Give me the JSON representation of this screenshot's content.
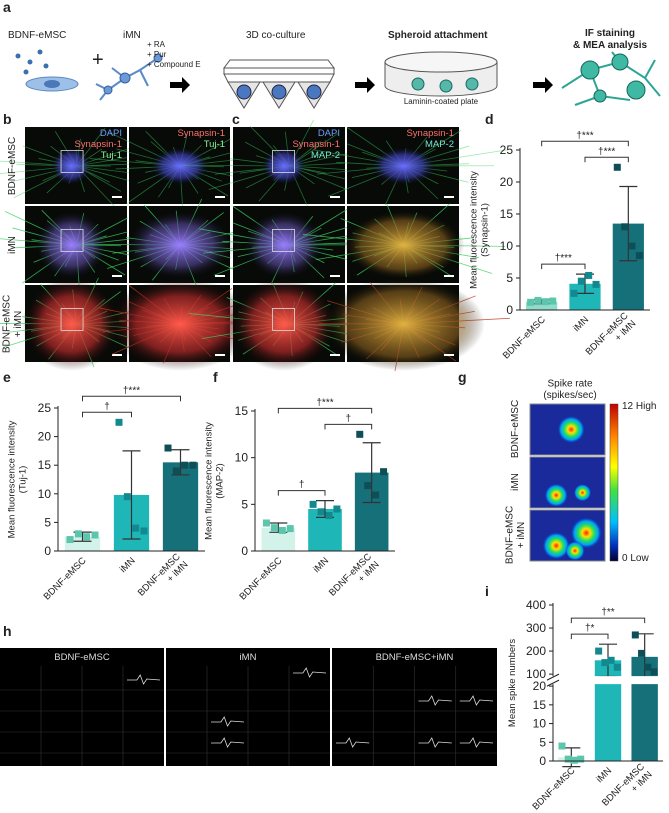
{
  "figure": {
    "panel_labels": [
      "a",
      "b",
      "c",
      "d",
      "e",
      "f",
      "g",
      "h",
      "i"
    ],
    "a": {
      "cell_labels": [
        "BDNF-eMSC",
        "iMN"
      ],
      "plus": "+",
      "treatments": [
        "+ RA",
        "+ Pur",
        "+ Compound E"
      ],
      "steps": [
        "3D co-culture",
        "Spheroid attachment"
      ],
      "plate_label": "Laminin-coated plate",
      "analysis": [
        "IF staining",
        "& MEA analysis"
      ]
    },
    "b": {
      "row_labels": [
        "BDNF-eMSC",
        "iMN",
        "BDNF-eMSC\n+ iMN"
      ],
      "stains": [
        [
          "DAPI",
          "Synapsin-1",
          "Tuj-1"
        ],
        [
          "Synapsin-1",
          "Tuj-1"
        ],
        [
          "DAPI",
          "Synapsin-1",
          "MAP-2"
        ],
        [
          "Synapsin-1",
          "MAP-2"
        ]
      ],
      "stain_colors": {
        "DAPI": "#6f9dff",
        "Synapsin-1": "#ff6f6f",
        "Tuj-1": "#8cf29a",
        "MAP-2": "#74e6cf"
      }
    },
    "g": {
      "title": "Spike rate\n(spikes/sec)",
      "row_labels": [
        "BDNF-eMSC",
        "iMN",
        "BDNF-eMSC\n+ iMN"
      ],
      "scale_high": "12 High",
      "scale_low": "0 Low"
    },
    "h": {
      "titles": [
        "BDNF-eMSC",
        "iMN",
        "BDNF-eMSC+iMN"
      ]
    }
  },
  "chart_data": [
    {
      "type": "bar",
      "ylabel": "Mean fluorescence intensity\n(Synapsin-1)",
      "categories": [
        "BDNF-eMSC",
        "iMN",
        "BDNF-eMSC\n+ iMN"
      ],
      "values": [
        1.3,
        4.1,
        13.5
      ],
      "errors": [
        0.3,
        1.5,
        5.8
      ],
      "points": [
        [
          1.2,
          1.5,
          1.3,
          1.4
        ],
        [
          2.6,
          4.5,
          5.4,
          4.0
        ],
        [
          22.3,
          13,
          10,
          8.5
        ]
      ],
      "colors": [
        "#8fdcc8",
        "#1fb6b8",
        "#167079"
      ],
      "point_colors": [
        "#5cc6ad",
        "#12898f",
        "#0e4f57"
      ],
      "ylim": [
        0,
        25
      ],
      "yticks": [
        0,
        5,
        10,
        15,
        20,
        25
      ],
      "annotations": [
        {
          "text": "†***",
          "from": 0,
          "to": 1
        },
        {
          "text": "†***",
          "from": 1,
          "to": 2
        },
        {
          "text": "†***",
          "from": 0,
          "to": 2
        }
      ]
    },
    {
      "type": "bar",
      "ylabel": "Mean fluorescence intensity\n(Tuj-1)",
      "categories": [
        "BDNF-eMSC",
        "iMN",
        "BDNF-eMSC\n+ iMN"
      ],
      "values": [
        2.5,
        9.8,
        15.5
      ],
      "errors": [
        0.8,
        7.7,
        2.2
      ],
      "points": [
        [
          2,
          3,
          2.5,
          2.8
        ],
        [
          22.5,
          9.5,
          4,
          3.5
        ],
        [
          18,
          14,
          15,
          15
        ]
      ],
      "colors": [
        "#d3f3ea",
        "#1fb6b8",
        "#167079"
      ],
      "point_colors": [
        "#5cc6ad",
        "#12898f",
        "#0e4f57"
      ],
      "ylim": [
        0,
        25
      ],
      "yticks": [
        0,
        5,
        10,
        15,
        20,
        25
      ],
      "annotations": [
        {
          "text": "†",
          "from": 0,
          "to": 1
        },
        {
          "text": "†***",
          "from": 0,
          "to": 2
        }
      ]
    },
    {
      "type": "bar",
      "ylabel": "Mean fluorescence intensity\n(MAP-2)",
      "categories": [
        "BDNF-eMSC",
        "iMN",
        "BDNF-eMSC\n+ iMN"
      ],
      "values": [
        2.5,
        4.5,
        8.4
      ],
      "errors": [
        0.5,
        0.9,
        3.2
      ],
      "points": [
        [
          3,
          2.5,
          2.2,
          2.4
        ],
        [
          5,
          4.2,
          3.8,
          4.5
        ],
        [
          12.5,
          7,
          6,
          8.5
        ]
      ],
      "colors": [
        "#d3f3ea",
        "#1fb6b8",
        "#167079"
      ],
      "point_colors": [
        "#5cc6ad",
        "#12898f",
        "#0e4f57"
      ],
      "ylim": [
        0,
        15
      ],
      "yticks": [
        0,
        5,
        10,
        15
      ],
      "annotations": [
        {
          "text": "†",
          "from": 0,
          "to": 1
        },
        {
          "text": "†",
          "from": 1,
          "to": 2
        },
        {
          "text": "†***",
          "from": 0,
          "to": 2
        }
      ]
    },
    {
      "type": "bar",
      "ylabel": "Mean spike numbers",
      "categories": [
        "BDNF-eMSC",
        "iMN",
        "BDNF-eMSC\n+ iMN"
      ],
      "values": [
        1,
        160,
        175
      ],
      "errors": [
        2.5,
        70,
        100
      ],
      "points": [
        [
          4,
          0.5,
          0.2,
          0.5
        ],
        [
          200,
          150,
          160,
          130
        ],
        [
          270,
          190,
          130,
          110
        ]
      ],
      "colors": [
        "#d3f3ea",
        "#1fb6b8",
        "#167079"
      ],
      "point_colors": [
        "#5cc6ad",
        "#12898f",
        "#0e4f57"
      ],
      "ylim": [
        0,
        400
      ],
      "ybreak": [
        20,
        100
      ],
      "yticks": [
        0,
        5,
        10,
        15,
        20,
        100,
        200,
        300,
        400
      ],
      "annotations": [
        {
          "text": "†*",
          "from": 0,
          "to": 1
        },
        {
          "text": "†**",
          "from": 0,
          "to": 2
        }
      ]
    }
  ]
}
